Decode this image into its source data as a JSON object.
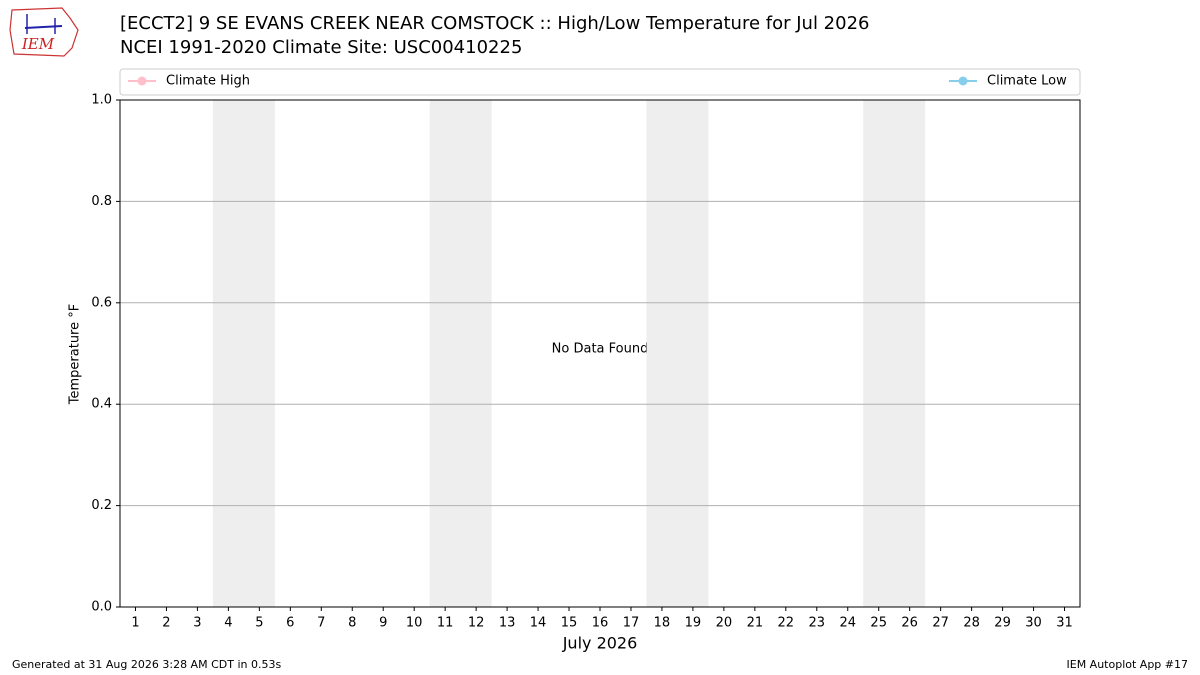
{
  "chart_data": {
    "type": "line",
    "title": "[ECCT2] 9 SE EVANS CREEK NEAR COMSTOCK :: High/Low Temperature for Jul 2026",
    "subtitle": "NCEI 1991-2020 Climate Site: USC00410225",
    "logo_text": "IEM",
    "y_label": "Temperature °F",
    "x_label": "July 2026",
    "annotation": "No Data Found",
    "footer_left": "Generated at 31 Aug 2026 3:28 AM CDT in 0.53s",
    "footer_right": "IEM Autoplot App #17",
    "x": [
      1,
      2,
      3,
      4,
      5,
      6,
      7,
      8,
      9,
      10,
      11,
      12,
      13,
      14,
      15,
      16,
      17,
      18,
      19,
      20,
      21,
      22,
      23,
      24,
      25,
      26,
      27,
      28,
      29,
      30,
      31
    ],
    "series": [
      {
        "name": "Climate High",
        "color": "#ffc0cb",
        "values": [
          null,
          null,
          null,
          null,
          null,
          null,
          null,
          null,
          null,
          null,
          null,
          null,
          null,
          null,
          null,
          null,
          null,
          null,
          null,
          null,
          null,
          null,
          null,
          null,
          null,
          null,
          null,
          null,
          null,
          null,
          null
        ]
      },
      {
        "name": "Climate Low",
        "color": "#87ceeb",
        "values": [
          null,
          null,
          null,
          null,
          null,
          null,
          null,
          null,
          null,
          null,
          null,
          null,
          null,
          null,
          null,
          null,
          null,
          null,
          null,
          null,
          null,
          null,
          null,
          null,
          null,
          null,
          null,
          null,
          null,
          null,
          null
        ]
      }
    ],
    "shaded_spans": [
      [
        3.5,
        5.5
      ],
      [
        10.5,
        12.5
      ],
      [
        17.5,
        19.5
      ],
      [
        24.5,
        26.5
      ]
    ],
    "shade_color": "#eeeeee",
    "xlim": [
      0.5,
      31.5
    ],
    "xticks": [
      1,
      2,
      3,
      4,
      5,
      6,
      7,
      8,
      9,
      10,
      11,
      12,
      13,
      14,
      15,
      16,
      17,
      18,
      19,
      20,
      21,
      22,
      23,
      24,
      25,
      26,
      27,
      28,
      29,
      30,
      31
    ],
    "ylim": [
      0,
      1
    ],
    "yticks": [
      {
        "value": 0,
        "label": "0.0"
      },
      {
        "value": 0.2,
        "label": "0.2"
      },
      {
        "value": 0.4,
        "label": "0.4"
      },
      {
        "value": 0.6,
        "label": "0.6"
      },
      {
        "value": 0.8,
        "label": "0.8"
      },
      {
        "value": 1,
        "label": "1.0"
      }
    ],
    "grid": true
  }
}
